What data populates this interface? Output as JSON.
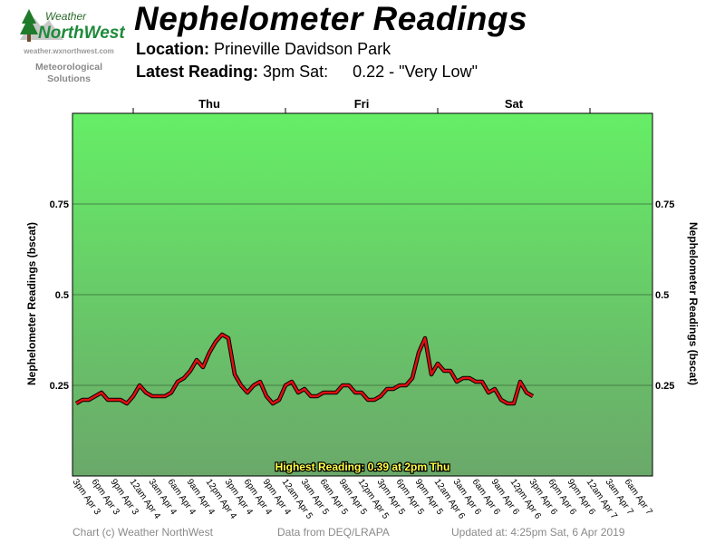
{
  "logo": {
    "word_top": "Weather",
    "word_main": "NorthWest",
    "url": "weather.wxnorthwest.com",
    "subtitle_lines": [
      "Meteorological",
      "Solutions"
    ]
  },
  "header": {
    "title": "Nephelometer Readings",
    "location_label": "Location:",
    "location_value": "Prineville Davidson Park",
    "latest_label": "Latest Reading:",
    "latest_time": "3pm Sat:",
    "latest_value": "0.22 - \"Very Low\""
  },
  "footer": {
    "copyright": "Chart (c) Weather NorthWest",
    "source": "Data from DEQ/LRAPA",
    "updated": "Updated at: 4:25pm Sat, 6 Apr 2019"
  },
  "colors": {
    "line": "#e01010",
    "line_shadow": "#000000",
    "plot_top": "#66ee66",
    "plot_bottom": "#6aa86a",
    "annotation_text": "#ffff44"
  },
  "chart_data": {
    "type": "line",
    "title": "Nephelometer Readings",
    "ylabel": "Nephelometer Readings (bscat)",
    "ylim": [
      0,
      1.0
    ],
    "yticks": [
      0.25,
      0.5,
      0.75
    ],
    "ytick_labels": [
      "0.25",
      "0.5",
      "0.75"
    ],
    "grid": true,
    "day_labels": [
      "Thu",
      "Fri",
      "Sat"
    ],
    "x_tick_labels": [
      "3pm Apr 3",
      "6pm Apr 3",
      "9pm Apr 3",
      "12am Apr 4",
      "3am Apr 4",
      "6am Apr 4",
      "9am Apr 4",
      "12pm Apr 4",
      "3pm Apr 4",
      "6pm Apr 4",
      "9pm Apr 4",
      "12am Apr 5",
      "3am Apr 5",
      "6am Apr 5",
      "9am Apr 5",
      "12pm Apr 5",
      "3pm Apr 5",
      "6pm Apr 5",
      "9pm Apr 5",
      "12am Apr 6",
      "3am Apr 6",
      "6am Apr 6",
      "9am Apr 6",
      "12pm Apr 6",
      "3pm Apr 6",
      "6pm Apr 6",
      "9pm Apr 6",
      "12am Apr 7",
      "3am Apr 7",
      "6am Apr 7"
    ],
    "annotation": "Highest Reading: 0.39 at 2pm Thu",
    "series": [
      {
        "x_hours_from_3pm_apr3": [
          0,
          1,
          2,
          3,
          4,
          5,
          6,
          7,
          8,
          9,
          10,
          11,
          12,
          13,
          14,
          15,
          16,
          17,
          18,
          19,
          20,
          21,
          22,
          23,
          24,
          25,
          26,
          27,
          28,
          29,
          30,
          31,
          32,
          33,
          34,
          35,
          36,
          37,
          38,
          39,
          40,
          41,
          42,
          43,
          44,
          45,
          46,
          47,
          48,
          49,
          50,
          51,
          52,
          53,
          54,
          55,
          56,
          57,
          58,
          59,
          60,
          61,
          62,
          63,
          64,
          65,
          66,
          67,
          68,
          69,
          70,
          71,
          72
        ],
        "values": [
          0.2,
          0.21,
          0.21,
          0.22,
          0.23,
          0.21,
          0.21,
          0.21,
          0.2,
          0.22,
          0.25,
          0.23,
          0.22,
          0.22,
          0.22,
          0.23,
          0.26,
          0.27,
          0.29,
          0.32,
          0.3,
          0.34,
          0.37,
          0.39,
          0.38,
          0.28,
          0.25,
          0.23,
          0.25,
          0.26,
          0.22,
          0.2,
          0.21,
          0.25,
          0.26,
          0.23,
          0.24,
          0.22,
          0.22,
          0.23,
          0.23,
          0.23,
          0.25,
          0.25,
          0.23,
          0.23,
          0.21,
          0.21,
          0.22,
          0.24,
          0.24,
          0.25,
          0.25,
          0.27,
          0.34,
          0.38,
          0.28,
          0.31,
          0.29,
          0.29,
          0.26,
          0.27,
          0.27,
          0.26,
          0.26,
          0.23,
          0.24,
          0.21,
          0.2,
          0.2,
          0.26,
          0.23,
          0.22
        ]
      }
    ]
  }
}
